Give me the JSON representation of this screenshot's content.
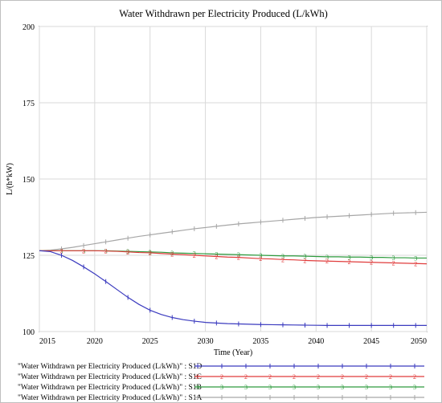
{
  "chart_data": {
    "type": "line",
    "title": "Water Withdrawn per Electricity Produced (L/kWh)",
    "xlabel": "Time (Year)",
    "ylabel": "L/(h*kW)",
    "xlim": [
      2015,
      2050
    ],
    "ylim": [
      100,
      200
    ],
    "x_ticks": [
      "2015",
      "2020",
      "2025",
      "2030",
      "2035",
      "2040",
      "2045",
      "2050"
    ],
    "y_ticks": [
      "100",
      "125",
      "150",
      "175",
      "200"
    ],
    "grid": true,
    "legend_position": "bottom",
    "x": [
      2015,
      2016,
      2017,
      2018,
      2019,
      2020,
      2021,
      2022,
      2023,
      2024,
      2025,
      2026,
      2027,
      2028,
      2029,
      2030,
      2031,
      2032,
      2033,
      2034,
      2035,
      2036,
      2037,
      2038,
      2039,
      2040,
      2041,
      2042,
      2043,
      2044,
      2045,
      2046,
      2047,
      2048,
      2049,
      2050
    ],
    "series": [
      {
        "name": "\"Water Withdrawn per Electricity Produced (L/kWh)\" : S1D",
        "marker": "1",
        "color": "#3b3bbf",
        "values": [
          126.5,
          126.2,
          125.0,
          123.3,
          121.2,
          118.9,
          116.4,
          113.8,
          111.2,
          108.9,
          107.0,
          105.6,
          104.6,
          103.9,
          103.4,
          103.0,
          102.8,
          102.6,
          102.5,
          102.4,
          102.3,
          102.25,
          102.2,
          102.15,
          102.1,
          102.05,
          102.0,
          102.0,
          102.0,
          102.0,
          102.0,
          102.0,
          102.0,
          102.0,
          102.0,
          102.0
        ]
      },
      {
        "name": "\"Water Withdrawn per Electricity Produced (L/kWh)\" : S1C",
        "marker": "2",
        "color": "#e03c3c",
        "values": [
          126.5,
          126.5,
          126.5,
          126.5,
          126.5,
          126.5,
          126.4,
          126.3,
          126.1,
          125.9,
          125.8,
          125.6,
          125.4,
          125.2,
          125.0,
          124.8,
          124.6,
          124.4,
          124.3,
          124.1,
          123.9,
          123.8,
          123.6,
          123.5,
          123.3,
          123.2,
          123.1,
          123.0,
          122.9,
          122.8,
          122.7,
          122.6,
          122.5,
          122.4,
          122.3,
          122.2
        ]
      },
      {
        "name": "\"Water Withdrawn per Electricity Produced (L/kWh)\" : S1B",
        "marker": "3",
        "color": "#2e9b3e",
        "values": [
          126.5,
          126.5,
          126.5,
          126.5,
          126.5,
          126.5,
          126.5,
          126.4,
          126.3,
          126.2,
          126.1,
          126.0,
          125.8,
          125.7,
          125.6,
          125.5,
          125.4,
          125.3,
          125.2,
          125.1,
          125.0,
          124.9,
          124.8,
          124.8,
          124.7,
          124.6,
          124.5,
          124.5,
          124.4,
          124.4,
          124.3,
          124.3,
          124.2,
          124.2,
          124.1,
          124.1
        ]
      },
      {
        "name": "\"Water Withdrawn per Electricity Produced (L/kWh)\" : S1A",
        "marker": "4",
        "color": "#a6a6a6",
        "values": [
          126.5,
          126.7,
          127.1,
          127.6,
          128.2,
          128.8,
          129.4,
          130.0,
          130.6,
          131.2,
          131.7,
          132.2,
          132.7,
          133.2,
          133.7,
          134.1,
          134.5,
          134.9,
          135.3,
          135.6,
          135.9,
          136.2,
          136.5,
          136.8,
          137.1,
          137.4,
          137.6,
          137.8,
          138.0,
          138.2,
          138.4,
          138.6,
          138.8,
          138.9,
          139.0,
          139.1
        ]
      }
    ]
  }
}
